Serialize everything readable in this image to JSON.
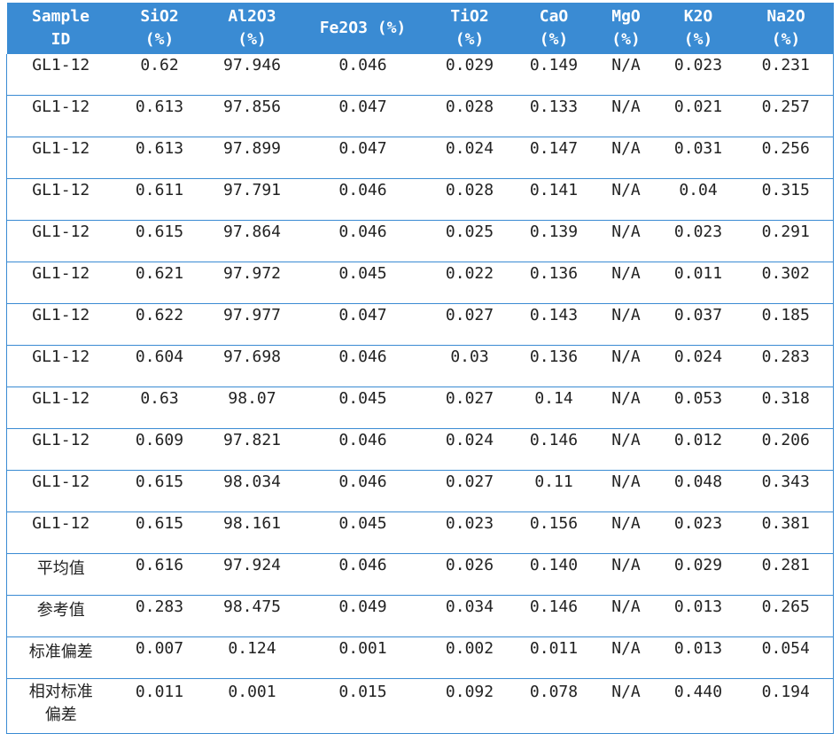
{
  "table": {
    "headers": [
      "Sample\nID",
      "SiO2\n(%)",
      "Al2O3\n(%)",
      "Fe2O3 (%)",
      "TiO2\n(%)",
      "CaO\n(%)",
      "MgO\n(%)",
      "K2O\n(%)",
      "Na2O\n(%)"
    ],
    "rows": [
      [
        "GL1-12",
        "0.62",
        "97.946",
        "0.046",
        "0.029",
        "0.149",
        "N/A",
        "0.023",
        "0.231"
      ],
      [
        "GL1-12",
        "0.613",
        "97.856",
        "0.047",
        "0.028",
        "0.133",
        "N/A",
        "0.021",
        "0.257"
      ],
      [
        "GL1-12",
        "0.613",
        "97.899",
        "0.047",
        "0.024",
        "0.147",
        "N/A",
        "0.031",
        "0.256"
      ],
      [
        "GL1-12",
        "0.611",
        "97.791",
        "0.046",
        "0.028",
        "0.141",
        "N/A",
        "0.04",
        "0.315"
      ],
      [
        "GL1-12",
        "0.615",
        "97.864",
        "0.046",
        "0.025",
        "0.139",
        "N/A",
        "0.023",
        "0.291"
      ],
      [
        "GL1-12",
        "0.621",
        "97.972",
        "0.045",
        "0.022",
        "0.136",
        "N/A",
        "0.011",
        "0.302"
      ],
      [
        "GL1-12",
        "0.622",
        "97.977",
        "0.047",
        "0.027",
        "0.143",
        "N/A",
        "0.037",
        "0.185"
      ],
      [
        "GL1-12",
        "0.604",
        "97.698",
        "0.046",
        "0.03",
        "0.136",
        "N/A",
        "0.024",
        "0.283"
      ],
      [
        "GL1-12",
        "0.63",
        "98.07",
        "0.045",
        "0.027",
        "0.14",
        "N/A",
        "0.053",
        "0.318"
      ],
      [
        "GL1-12",
        "0.609",
        "97.821",
        "0.046",
        "0.024",
        "0.146",
        "N/A",
        "0.012",
        "0.206"
      ],
      [
        "GL1-12",
        "0.615",
        "98.034",
        "0.046",
        "0.027",
        "0.11",
        "N/A",
        "0.048",
        "0.343"
      ],
      [
        "GL1-12",
        "0.615",
        "98.161",
        "0.045",
        "0.023",
        "0.156",
        "N/A",
        "0.023",
        "0.381"
      ],
      [
        "平均值",
        "0.616",
        "97.924",
        "0.046",
        "0.026",
        "0.140",
        "N/A",
        "0.029",
        "0.281"
      ],
      [
        "参考值",
        "0.283",
        "98.475",
        "0.049",
        "0.034",
        "0.146",
        "N/A",
        "0.013",
        "0.265"
      ],
      [
        "标准偏差",
        "0.007",
        "0.124",
        "0.001",
        "0.002",
        "0.011",
        "N/A",
        "0.013",
        "0.054"
      ],
      [
        "相对标准\n偏差",
        "0.011",
        "0.001",
        "0.015",
        "0.092",
        "0.078",
        "N/A",
        "0.440",
        "0.194"
      ]
    ]
  },
  "colors": {
    "header_bg": "#3a8bd3",
    "header_text": "#ffffff",
    "border": "#3a8bd3",
    "cell_text": "#222222"
  }
}
